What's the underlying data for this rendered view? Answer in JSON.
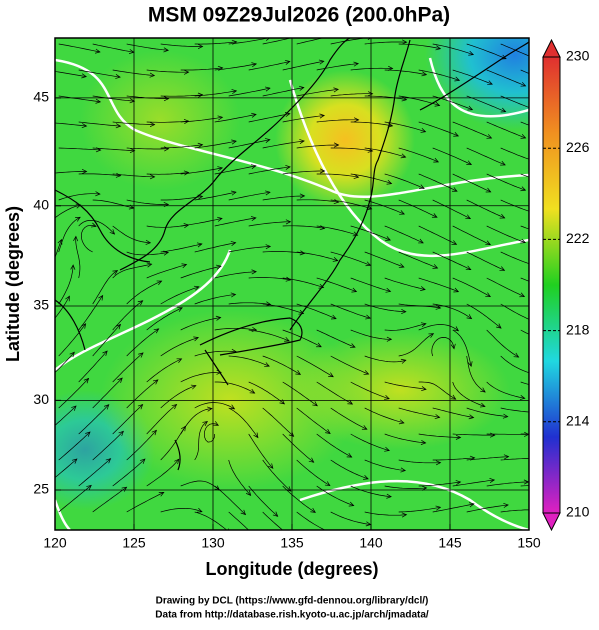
{
  "chart_data": {
    "type": "field_map",
    "title": "MSM 09Z29Jul2026 (200.0hPa)",
    "xlabel": "Longitude (degrees)",
    "ylabel": "Latitude  (degrees)",
    "xlim": [
      120,
      150
    ],
    "ylim": [
      22.7,
      47.6
    ],
    "projection": "mercator",
    "xticks": [
      120,
      125,
      130,
      135,
      140,
      145,
      150
    ],
    "yticks": [
      25,
      30,
      35,
      40,
      45
    ],
    "grid": true,
    "colorbar": {
      "lim": [
        210,
        230
      ],
      "ticks": [
        210,
        214,
        218,
        222,
        226,
        230
      ],
      "colors": [
        "#e020c0",
        "#2030d0",
        "#20d8e0",
        "#20d020",
        "#f0e020",
        "#f09020",
        "#e03030"
      ]
    },
    "credits": [
      "Drawing by DCL (https://www.gfd-dennou.org/library/dcl/)",
      "Data from http://database.rish.kyoto-u.ac.jp/arch/jmadata/"
    ]
  }
}
